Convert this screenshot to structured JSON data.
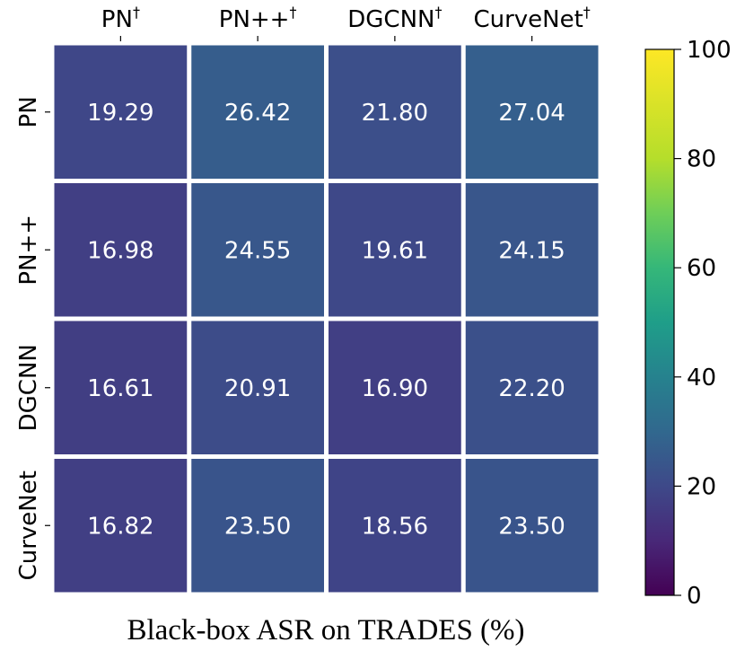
{
  "chart_data": {
    "type": "heatmap",
    "title": "",
    "xlabel": "Black-box ASR on TRADES (%)",
    "ylabel": "",
    "col_labels": [
      {
        "name": "PN",
        "sup": "†"
      },
      {
        "name": "PN++",
        "sup": "†"
      },
      {
        "name": "DGCNN",
        "sup": "†"
      },
      {
        "name": "CurveNet",
        "sup": "†"
      }
    ],
    "row_labels": [
      "PN",
      "PN++",
      "DGCNN",
      "CurveNet"
    ],
    "values": [
      [
        19.29,
        26.42,
        21.8,
        27.04
      ],
      [
        16.98,
        24.55,
        19.61,
        24.15
      ],
      [
        16.61,
        20.91,
        16.9,
        22.2
      ],
      [
        16.82,
        23.5,
        18.56,
        23.5
      ]
    ],
    "value_format_decimals": 2,
    "colormap": "viridis",
    "vmin": 0,
    "vmax": 100,
    "colorbar_ticks": [
      0,
      20,
      40,
      60,
      80,
      100
    ],
    "legend_position": "right",
    "cell_text_color": "#ffffff",
    "grid_line_color": "#ffffff"
  }
}
